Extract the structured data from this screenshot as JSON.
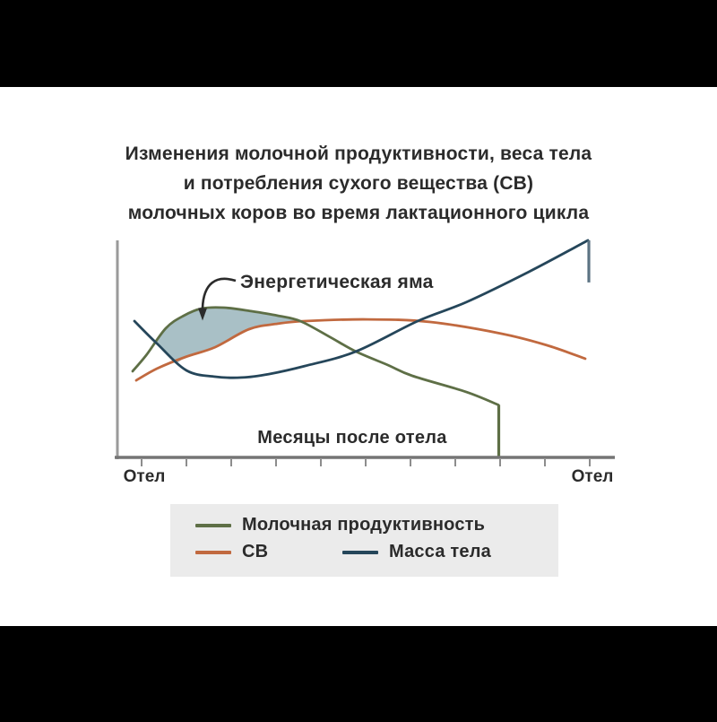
{
  "window": {
    "background": "#000000",
    "canvas_background": "#ffffff"
  },
  "title": {
    "lines": [
      "Изменения молочной продуктивности, веса тела",
      "и потребления сухого вещества (СВ)",
      "молочных коров во время лактационного цикла"
    ]
  },
  "chart_data": {
    "type": "line",
    "title": "Изменения молочной продуктивности, веса тела и потребления сухого вещества (СВ) молочных коров во время лактационного цикла",
    "xlabel": "Месяцы после отела",
    "ylabel": "",
    "x_axis": {
      "start_label": "Отел",
      "end_label": "Отел",
      "tick_count": 11,
      "months_range": [
        0,
        10
      ],
      "numeric_tick_labels_visible": false
    },
    "y_axis": {
      "scale_visible": false,
      "relative_range": [
        0,
        100
      ]
    },
    "grid": false,
    "legend_position": "bottom",
    "annotation": {
      "text": "Энергетическая яма",
      "target_month": 1.36,
      "target_level": 63,
      "meaning": "заштрихованная область между кривыми молочной продуктивности и СВ в начале лактации"
    },
    "deficit_area": {
      "fill": "#a9c0c6",
      "polygon": [
        [
          0.34,
          53.0
        ],
        [
          0.54,
          59.5
        ],
        [
          0.94,
          65.3
        ],
        [
          1.34,
          68.6
        ],
        [
          1.84,
          69.0
        ],
        [
          2.44,
          67.4
        ],
        [
          3.04,
          65.3
        ],
        [
          3.54,
          62.8
        ],
        [
          3.1,
          61.8
        ],
        [
          2.4,
          59.1
        ],
        [
          1.64,
          50.8
        ],
        [
          0.98,
          46.3
        ],
        [
          0.8,
          43.6
        ],
        [
          0.6,
          46.8
        ],
        [
          0.45,
          50.0
        ]
      ]
    },
    "series": [
      {
        "key": "milk",
        "name": "Молочная продуктивность",
        "color": "#5e6f46",
        "points": [
          [
            -0.2,
            39.7
          ],
          [
            0.1,
            47.0
          ],
          [
            0.54,
            59.5
          ],
          [
            0.94,
            65.3
          ],
          [
            1.34,
            68.6
          ],
          [
            1.84,
            69.0
          ],
          [
            2.44,
            67.4
          ],
          [
            3.04,
            65.3
          ],
          [
            3.54,
            62.8
          ],
          [
            4.2,
            55.5
          ],
          [
            4.78,
            48.8
          ],
          [
            5.5,
            42.5
          ],
          [
            6.04,
            37.6
          ],
          [
            7.24,
            30.2
          ],
          [
            7.96,
            24.2
          ]
        ],
        "drop": [
          [
            7.97,
            24.2
          ],
          [
            7.97,
            0.5
          ]
        ]
      },
      {
        "key": "dm",
        "name": "СВ",
        "color": "#c1693f",
        "points": [
          [
            -0.12,
            35.5
          ],
          [
            0.34,
            40.9
          ],
          [
            0.98,
            46.3
          ],
          [
            1.64,
            50.8
          ],
          [
            2.4,
            59.1
          ],
          [
            3.04,
            61.6
          ],
          [
            3.64,
            62.8
          ],
          [
            5.04,
            63.6
          ],
          [
            6.44,
            62.4
          ],
          [
            8.04,
            57.0
          ],
          [
            9.04,
            51.7
          ],
          [
            9.9,
            45.5
          ]
        ]
      },
      {
        "key": "body-weight",
        "name": "Масса тела",
        "color": "#25465a",
        "points": [
          [
            -0.16,
            62.8
          ],
          [
            0.34,
            52.5
          ],
          [
            1.0,
            40.1
          ],
          [
            1.64,
            37.2
          ],
          [
            2.24,
            36.8
          ],
          [
            2.84,
            38.4
          ],
          [
            3.64,
            42.1
          ],
          [
            4.78,
            48.8
          ],
          [
            6.16,
            62.8
          ],
          [
            7.24,
            71.5
          ],
          [
            8.64,
            85.5
          ],
          [
            9.96,
            100
          ]
        ],
        "drop": [
          [
            9.98,
            100
          ],
          [
            9.98,
            80.6
          ]
        ],
        "drop_color": "#5c7383"
      }
    ],
    "colors": {
      "axis": "#757575",
      "y_axis": "#9a9a9a",
      "ticks": "#8d8d8d",
      "annotation_arrow": "#2b2b2b",
      "legend_background": "#ebebeb",
      "text": "#2b2b2b"
    }
  }
}
